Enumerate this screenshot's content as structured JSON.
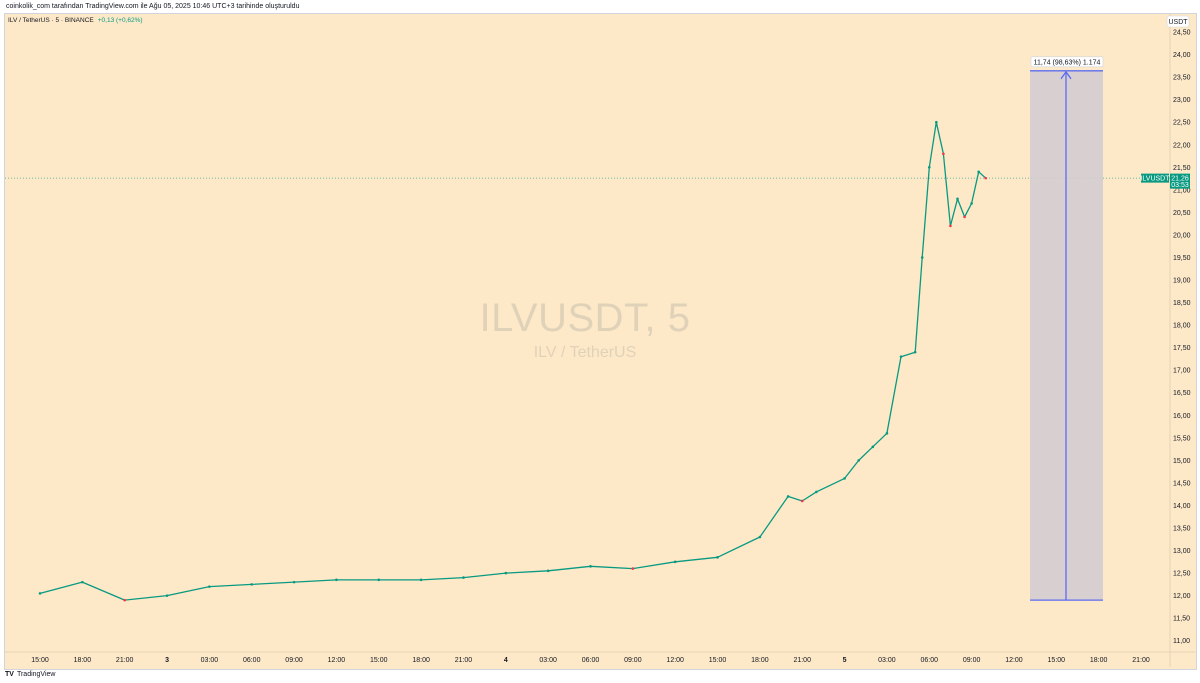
{
  "caption": "coinkolik_com tarafından TradingView.com ile Ağu 05, 2025 10:46 UTC+3 tarihinde oluşturuldu",
  "legend": {
    "symbol_text": "ILV / TetherUS · 5 · BINANCE",
    "change_text": "+0,13 (+0,62%)"
  },
  "watermark": {
    "main": "ILVUSDT, 5",
    "sub": "ILV / TetherUS"
  },
  "currency_button": "USDT",
  "price_label": {
    "symbol": "ILVUSDT",
    "price": "21,26",
    "countdown": "03:53"
  },
  "measure_label": "11,74 (98,63%) 1.174",
  "footer": {
    "logo": "TV",
    "brand": "TradingView"
  },
  "colors": {
    "background": "#fde9c8",
    "up": "#089981",
    "down": "#f23645",
    "measure": "#5b6cf2"
  },
  "chart_data": {
    "type": "line",
    "title": "ILVUSDT, 5",
    "xlabel": "",
    "ylabel": "",
    "ylim": [
      10.75,
      24.9
    ],
    "grid": false,
    "x_ticks": [
      "15:00",
      "18:00",
      "21:00",
      "3",
      "03:00",
      "06:00",
      "09:00",
      "12:00",
      "15:00",
      "18:00",
      "21:00",
      "4",
      "03:00",
      "06:00",
      "09:00",
      "12:00",
      "15:00",
      "18:00",
      "21:00",
      "5",
      "03:00",
      "06:00",
      "09:00",
      "12:00",
      "15:00",
      "18:00",
      "21:00"
    ],
    "y_ticks": [
      "11,00",
      "11,50",
      "12,00",
      "12,50",
      "13,00",
      "13,50",
      "14,00",
      "14,50",
      "15,00",
      "15,50",
      "16,00",
      "16,50",
      "17,00",
      "17,50",
      "18,00",
      "18,50",
      "19,00",
      "19,50",
      "20,00",
      "20,50",
      "21,00",
      "21,50",
      "22,00",
      "22,50",
      "23,00",
      "23,50",
      "24,00",
      "24,50"
    ],
    "y_tick_values": [
      11.0,
      11.5,
      12.0,
      12.5,
      13.0,
      13.5,
      14.0,
      14.5,
      15.0,
      15.5,
      16.0,
      16.5,
      17.0,
      17.5,
      18.0,
      18.5,
      19.0,
      19.5,
      20.0,
      20.5,
      21.0,
      21.5,
      22.0,
      22.5,
      23.0,
      23.5,
      24.0,
      24.5
    ],
    "series": [
      {
        "x": [
          "15:00",
          "18:00",
          "21:00",
          "3",
          "03:00",
          "06:00",
          "09:00",
          "12:00",
          "15:00",
          "18:00",
          "21:00",
          "4",
          "03:00",
          "06:00",
          "09:00",
          "12:00",
          "15:00",
          "18:00",
          "20:00",
          "21:00",
          "22:00",
          "5",
          "01:00",
          "02:00",
          "03:00",
          "04:00",
          "05:00",
          "05:30",
          "06:00",
          "06:30",
          "07:00",
          "07:30",
          "08:00",
          "08:30",
          "09:00",
          "09:30",
          "10:00"
        ],
        "values": [
          12.05,
          12.3,
          11.9,
          12.0,
          12.2,
          12.25,
          12.3,
          12.35,
          12.35,
          12.35,
          12.4,
          12.5,
          12.55,
          12.65,
          12.6,
          12.75,
          12.85,
          13.3,
          14.2,
          14.1,
          14.3,
          14.6,
          15.0,
          15.3,
          15.6,
          17.3,
          17.4,
          19.5,
          21.5,
          22.5,
          21.8,
          20.2,
          20.8,
          20.4,
          20.7,
          21.4,
          21.26
        ]
      }
    ],
    "last_price": 21.26,
    "measure": {
      "from": 11.9,
      "to": 23.64,
      "change": 11.74,
      "percent": 98.63,
      "bars": 1174
    }
  }
}
